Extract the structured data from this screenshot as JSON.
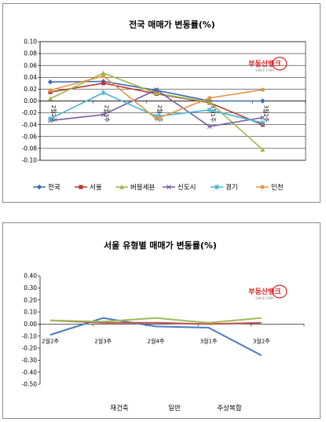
{
  "chart_data": [
    {
      "type": "line",
      "title": "전국 매매가 변동률(%)",
      "categories": [
        "2월2주",
        "2월3주",
        "2월4주",
        "3월1주",
        "3월2주"
      ],
      "ylim": [
        -0.1,
        0.1
      ],
      "yticks": [
        "0.10",
        "0.08",
        "0.06",
        "0.04",
        "0.02",
        "0.00",
        "-0.02",
        "-0.04",
        "-0.06",
        "-0.08",
        "-0.10"
      ],
      "grid": true,
      "legend_position": "bottom",
      "series": [
        {
          "name": "전국",
          "color": "#3d6ab5",
          "marker": "diamond",
          "values": [
            0.032,
            0.033,
            0.018,
            0.0,
            0.0
          ]
        },
        {
          "name": "서울",
          "color": "#b53b3b",
          "marker": "square",
          "values": [
            0.015,
            0.03,
            0.012,
            -0.003,
            -0.04
          ]
        },
        {
          "name": "버블세븐",
          "color": "#98b94b",
          "marker": "triangle",
          "values": [
            0.004,
            0.047,
            0.013,
            -0.002,
            -0.082
          ]
        },
        {
          "name": "신도시",
          "color": "#7a5a9e",
          "marker": "x",
          "values": [
            -0.033,
            -0.023,
            0.019,
            -0.043,
            -0.028
          ]
        },
        {
          "name": "경기",
          "color": "#45b4cf",
          "marker": "star",
          "values": [
            -0.03,
            0.014,
            -0.026,
            -0.015,
            -0.037
          ]
        },
        {
          "name": "인천",
          "color": "#e39545",
          "marker": "circle",
          "values": [
            0.018,
            0.042,
            -0.03,
            0.005,
            0.019
          ]
        }
      ]
    },
    {
      "type": "line",
      "title": "서울 유형별 매매가 변동률(%)",
      "categories": [
        "2월2주",
        "2월3주",
        "2월4주",
        "3월1주",
        "3월2주"
      ],
      "ylim": [
        -0.5,
        0.4
      ],
      "yticks": [
        "0.40",
        "0.30",
        "0.20",
        "0.10",
        "0.00",
        "-0.10",
        "-0.20",
        "-0.30",
        "-0.40",
        "-0.50"
      ],
      "grid": false,
      "legend_position": "bottom",
      "series": [
        {
          "name": "재건축",
          "color": "#4a7abf",
          "values": [
            -0.09,
            0.05,
            -0.02,
            -0.03,
            -0.26
          ]
        },
        {
          "name": "일반",
          "color": "#c0504d",
          "values": [
            0.03,
            0.01,
            0.01,
            0.0,
            0.01
          ]
        },
        {
          "name": "주상복합",
          "color": "#9bbb59",
          "values": [
            0.03,
            0.02,
            0.05,
            0.01,
            0.05
          ]
        }
      ]
    }
  ],
  "watermark": {
    "logo_text": "부동산뱅크",
    "sub_text": "SINCE 1989",
    "color": "#d22222"
  }
}
